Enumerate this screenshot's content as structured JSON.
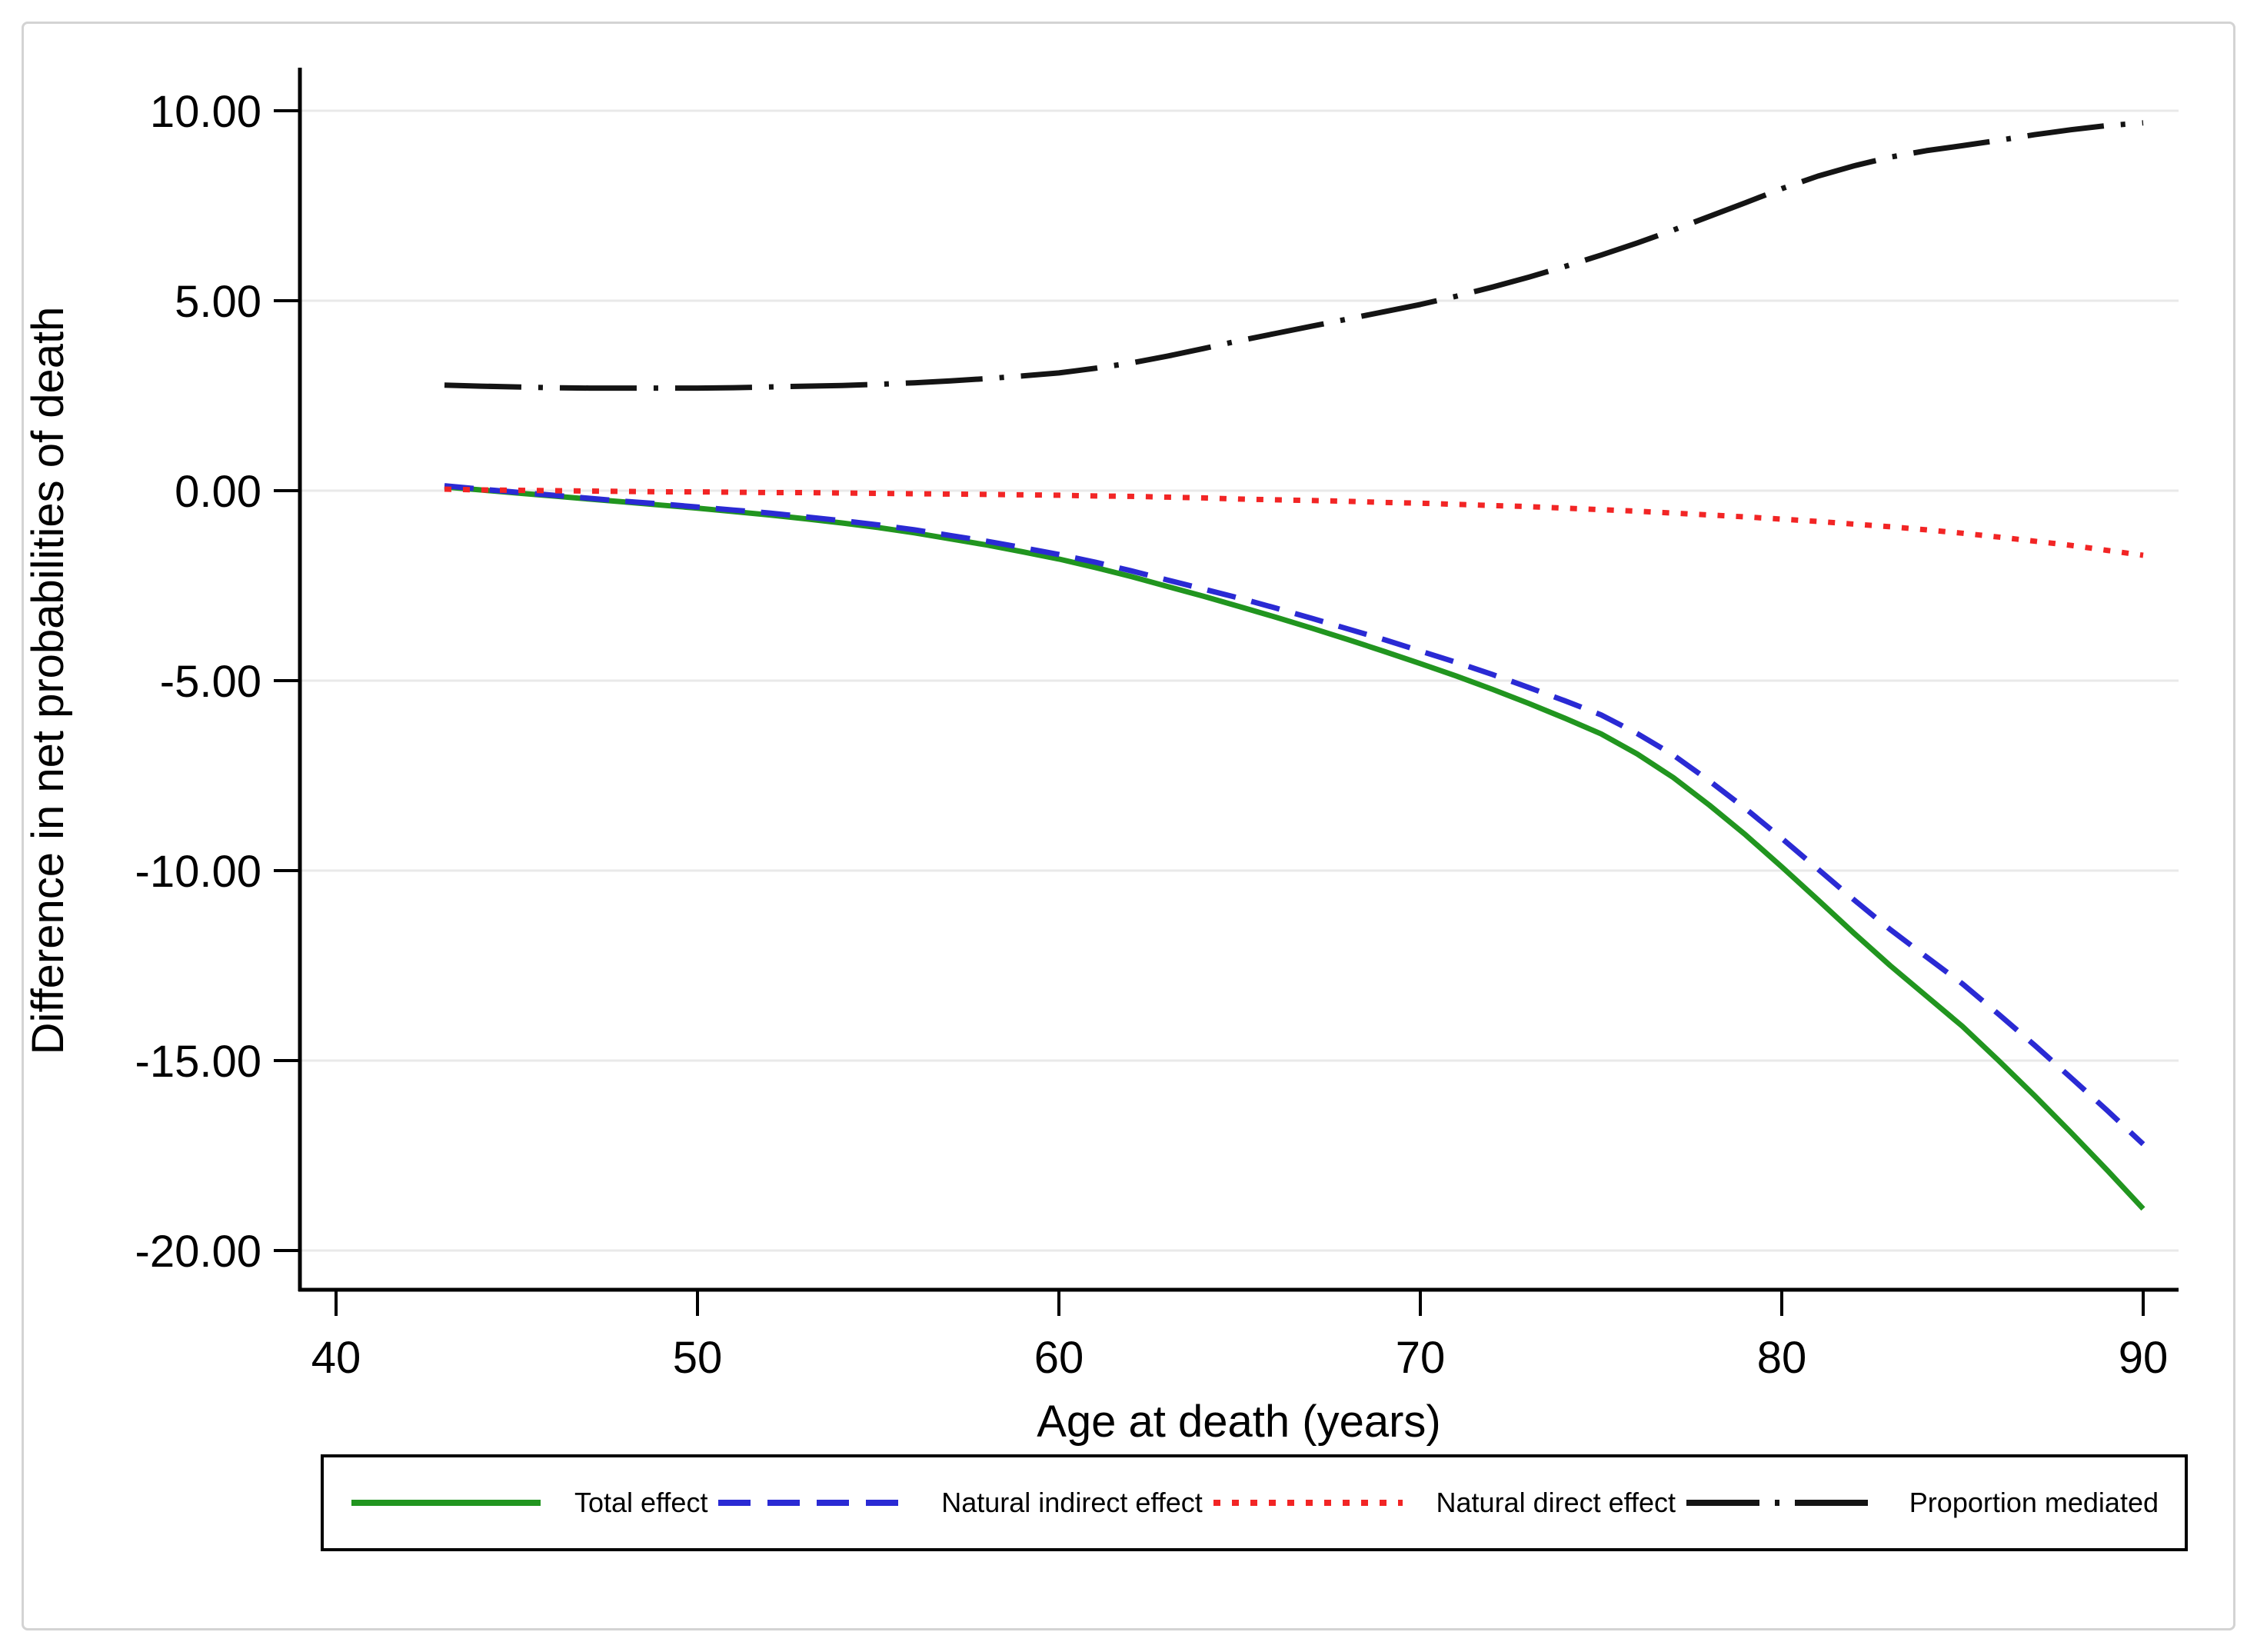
{
  "figure": {
    "background": "#ffffff",
    "border_color": "#d3d3d3",
    "axis_color": "#000000"
  },
  "chart_data": {
    "type": "line",
    "title": "",
    "xlabel": "Age at death (years)",
    "ylabel": "Difference in net probabilities of death",
    "xlim": [
      39,
      91
    ],
    "ylim": [
      -21,
      11.2
    ],
    "x_ticks": [
      40,
      50,
      60,
      70,
      80,
      90
    ],
    "x_tick_labels": [
      "40",
      "50",
      "60",
      "70",
      "80",
      "90"
    ],
    "y_ticks": [
      10,
      5,
      0,
      -5,
      -10,
      -15,
      -20
    ],
    "y_tick_labels": [
      "10.00",
      "5.00",
      "0.00",
      "-5.00",
      "-10.00",
      "-15.00",
      "-20.00"
    ],
    "grid": "horizontal",
    "gridline_color": "#e9e9e9",
    "legend_position": "bottom",
    "x": [
      43,
      44,
      45,
      46,
      47,
      48,
      49,
      50,
      51,
      52,
      53,
      54,
      55,
      56,
      57,
      58,
      59,
      60,
      61,
      62,
      63,
      64,
      65,
      66,
      67,
      68,
      69,
      70,
      71,
      72,
      73,
      74,
      75,
      76,
      77,
      78,
      79,
      80,
      81,
      82,
      83,
      84,
      85,
      86,
      87,
      88,
      89,
      90
    ],
    "series": [
      {
        "name": "Total effect",
        "color": "#21951f",
        "style": "solid",
        "values": [
          0.1,
          0.02,
          -0.06,
          -0.14,
          -0.22,
          -0.3,
          -0.38,
          -0.46,
          -0.55,
          -0.64,
          -0.74,
          -0.85,
          -0.97,
          -1.11,
          -1.27,
          -1.43,
          -1.61,
          -1.8,
          -2.02,
          -2.26,
          -2.52,
          -2.78,
          -3.05,
          -3.33,
          -3.62,
          -3.92,
          -4.23,
          -4.55,
          -4.88,
          -5.23,
          -5.6,
          -5.99,
          -6.4,
          -6.93,
          -7.55,
          -8.28,
          -9.06,
          -9.9,
          -10.77,
          -11.65,
          -12.5,
          -13.3,
          -14.1,
          -15.0,
          -15.93,
          -16.89,
          -17.88,
          -18.9
        ]
      },
      {
        "name": "Natural indirect effect",
        "color": "#2a2ad4",
        "style": "dashed",
        "values": [
          0.13,
          0.04,
          -0.04,
          -0.12,
          -0.2,
          -0.28,
          -0.35,
          -0.43,
          -0.51,
          -0.59,
          -0.69,
          -0.79,
          -0.9,
          -1.03,
          -1.18,
          -1.33,
          -1.5,
          -1.68,
          -1.88,
          -2.11,
          -2.35,
          -2.59,
          -2.83,
          -3.09,
          -3.36,
          -3.64,
          -3.92,
          -4.22,
          -4.52,
          -4.84,
          -5.18,
          -5.53,
          -5.9,
          -6.39,
          -6.96,
          -7.64,
          -8.37,
          -9.15,
          -9.96,
          -10.77,
          -11.55,
          -12.27,
          -12.98,
          -13.78,
          -14.6,
          -15.45,
          -16.31,
          -17.2
        ]
      },
      {
        "name": "Natural direct effect",
        "color": "#f22525",
        "style": "dotted",
        "values": [
          0.04,
          0.02,
          0.01,
          0.0,
          -0.01,
          -0.02,
          -0.03,
          -0.03,
          -0.04,
          -0.05,
          -0.05,
          -0.06,
          -0.07,
          -0.08,
          -0.09,
          -0.1,
          -0.11,
          -0.12,
          -0.14,
          -0.15,
          -0.17,
          -0.19,
          -0.22,
          -0.24,
          -0.26,
          -0.28,
          -0.31,
          -0.33,
          -0.36,
          -0.39,
          -0.42,
          -0.46,
          -0.5,
          -0.54,
          -0.59,
          -0.64,
          -0.69,
          -0.75,
          -0.81,
          -0.88,
          -0.95,
          -1.03,
          -1.12,
          -1.22,
          -1.33,
          -1.44,
          -1.57,
          -1.7
        ]
      },
      {
        "name": "Proportion mediated",
        "color": "#141414",
        "style": "dash-dot",
        "values": [
          2.78,
          2.75,
          2.73,
          2.71,
          2.7,
          2.7,
          2.7,
          2.7,
          2.71,
          2.73,
          2.75,
          2.77,
          2.8,
          2.84,
          2.89,
          2.95,
          3.02,
          3.1,
          3.22,
          3.36,
          3.54,
          3.74,
          3.95,
          4.14,
          4.33,
          4.52,
          4.71,
          4.9,
          5.12,
          5.36,
          5.62,
          5.9,
          6.2,
          6.52,
          6.86,
          7.22,
          7.58,
          7.95,
          8.28,
          8.55,
          8.78,
          8.95,
          9.08,
          9.22,
          9.37,
          9.5,
          9.61,
          9.68
        ]
      }
    ]
  }
}
